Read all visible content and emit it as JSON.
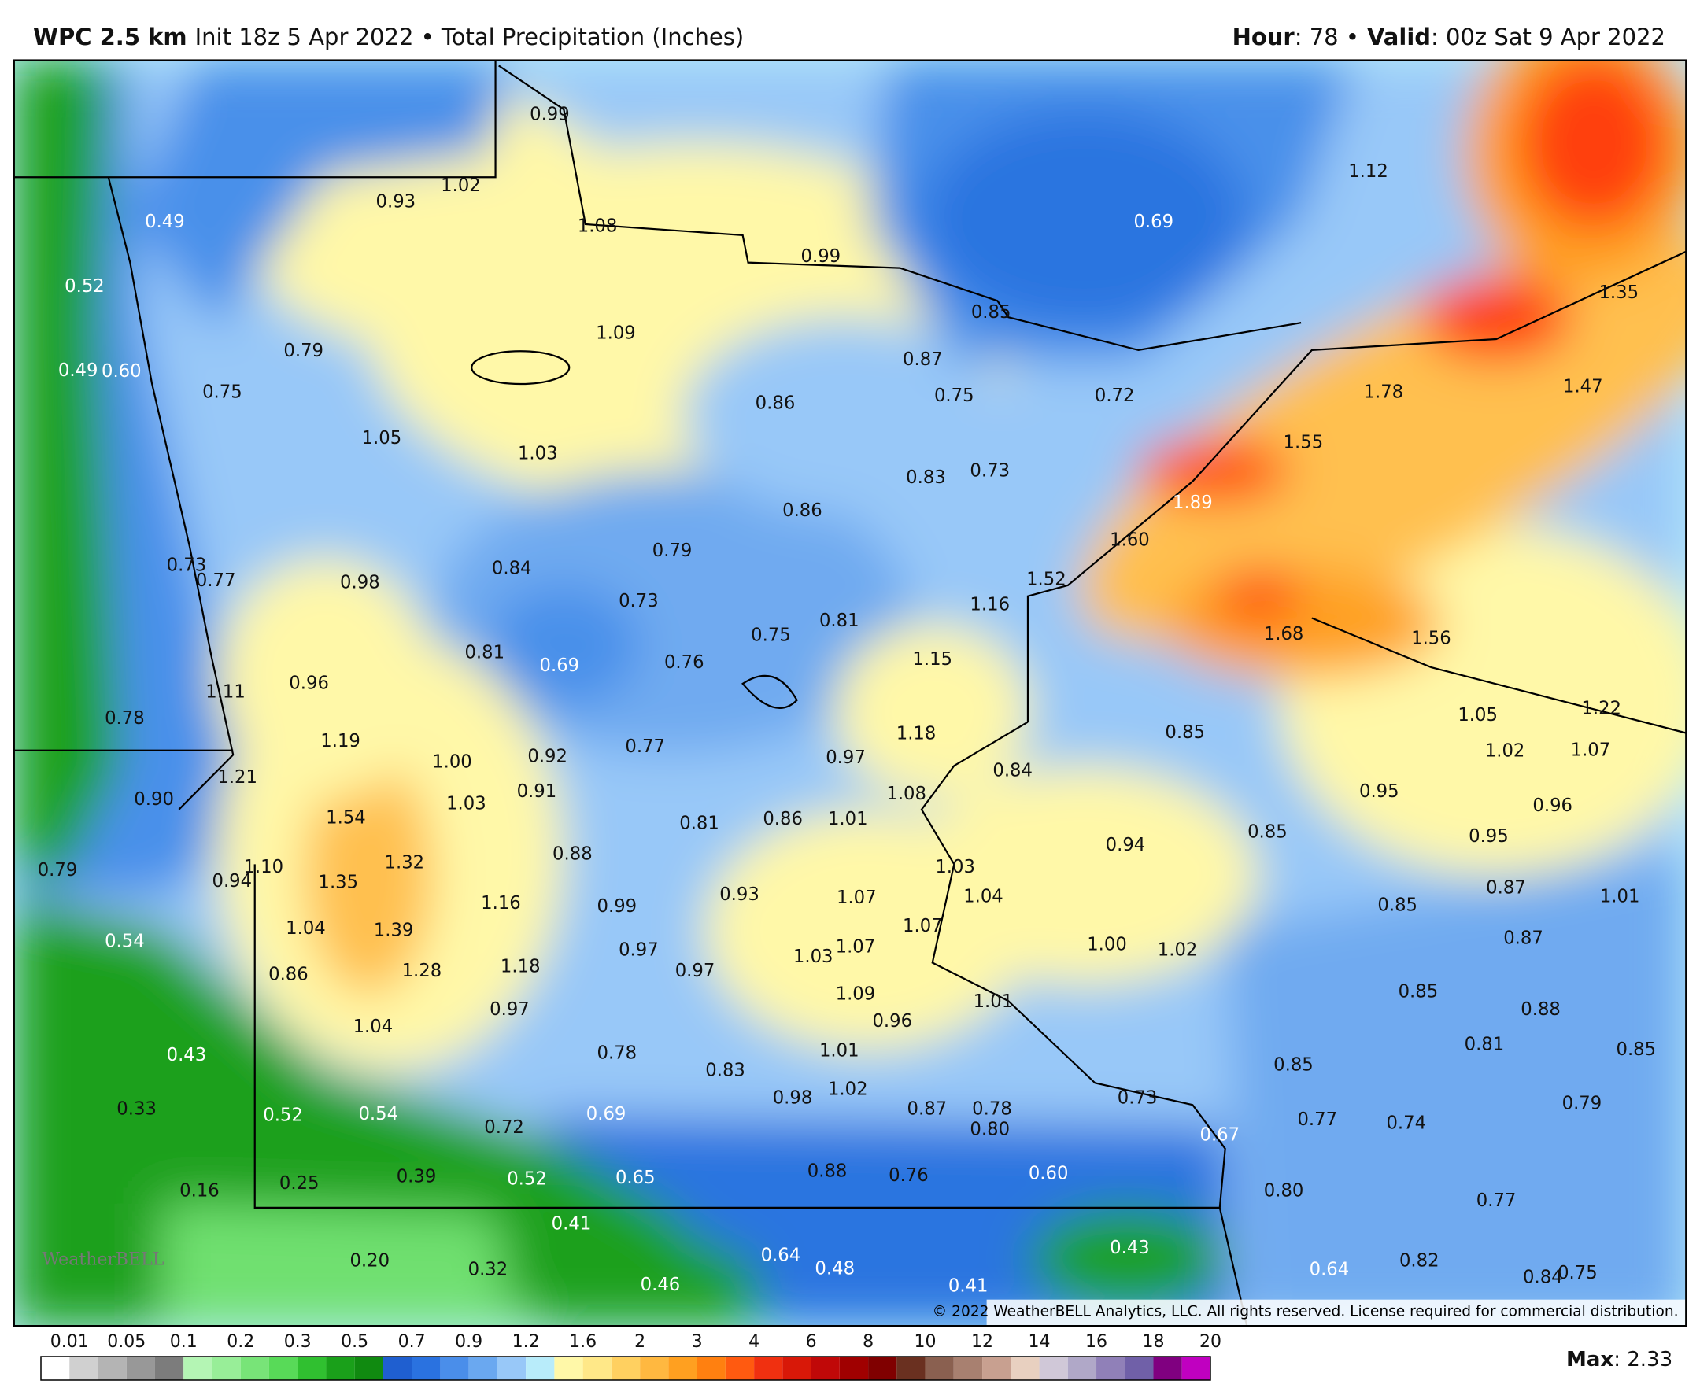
{
  "header": {
    "model": "WPC 2.5 km",
    "init": "Init 18z 5 Apr 2022 • Total Precipitation (Inches)",
    "hour_label": "Hour",
    "hour": ": 78 •",
    "valid_label": "Valid",
    "valid": ": 00z Sat 9 Apr 2022"
  },
  "map": {
    "labels": [
      "0.99",
      "1.02",
      "0.93",
      "0.49",
      "0.52",
      "1.08",
      "0.99",
      "1.12",
      "0.69",
      "0.85",
      "1.35",
      "1.09",
      "0.79",
      "0.49",
      "0.60",
      "0.75",
      "0.87",
      "0.75",
      "0.72",
      "1.78",
      "1.47",
      "0.86",
      "1.05",
      "1.03",
      "1.55",
      "0.83",
      "0.73",
      "1.89",
      "0.86",
      "0.79",
      "1.60",
      "0.73",
      "0.77",
      "0.98",
      "0.84",
      "1.52",
      "1.16",
      "0.73",
      "0.81",
      "0.75",
      "1.68",
      "1.56",
      "0.81",
      "0.69",
      "0.76",
      "1.15",
      "1.11",
      "0.96",
      "0.78",
      "1.05",
      "1.22",
      "1.19",
      "1.18",
      "0.85",
      "1.02",
      "1.07",
      "1.00",
      "0.92",
      "0.77",
      "0.97",
      "0.84",
      "1.21",
      "0.91",
      "1.03",
      "0.90",
      "1.08",
      "0.95",
      "0.96",
      "1.54",
      "0.81",
      "0.86",
      "1.01",
      "0.85",
      "0.94",
      "0.95",
      "0.79",
      "1.10",
      "0.94",
      "1.32",
      "0.88",
      "1.03",
      "1.35",
      "0.87",
      "1.01",
      "0.93",
      "1.07",
      "1.04",
      "1.16",
      "0.99",
      "0.85",
      "1.04",
      "1.39",
      "1.07",
      "0.54",
      "0.87",
      "0.97",
      "1.07",
      "1.00",
      "1.02",
      "1.03",
      "0.86",
      "1.28",
      "1.18",
      "0.97",
      "1.09",
      "1.01",
      "0.85",
      "0.88",
      "0.97",
      "0.96",
      "1.04",
      "0.81",
      "0.85",
      "0.43",
      "0.78",
      "1.01",
      "0.83",
      "0.85",
      "0.98",
      "1.02",
      "0.73",
      "0.33",
      "0.52",
      "0.54",
      "0.87",
      "0.78",
      "0.79",
      "0.72",
      "0.69",
      "0.80",
      "0.77",
      "0.74",
      "0.67",
      "0.39",
      "0.25",
      "0.16",
      "0.52",
      "0.65",
      "0.88",
      "0.76",
      "0.60",
      "0.80",
      "0.77",
      "0.41",
      "0.43",
      "0.64",
      "0.48",
      "0.20",
      "0.32",
      "0.46",
      "0.41",
      "0.64",
      "0.82",
      "0.84",
      "0.75"
    ],
    "copyright": "© 2022 WeatherBELL Analytics, LLC. All rights reserved. License required for commercial distribution.",
    "logo": "WeatherBELL"
  },
  "legend": {
    "ticks": [
      "0.01",
      "0.05",
      "0.1",
      "0.2",
      "0.3",
      "0.5",
      "0.7",
      "0.9",
      "1.2",
      "1.6",
      "2",
      "3",
      "4",
      "6",
      "8",
      "10",
      "12",
      "14",
      "16",
      "18",
      "20"
    ],
    "max_label": "Max",
    "max": ": 2.33"
  }
}
